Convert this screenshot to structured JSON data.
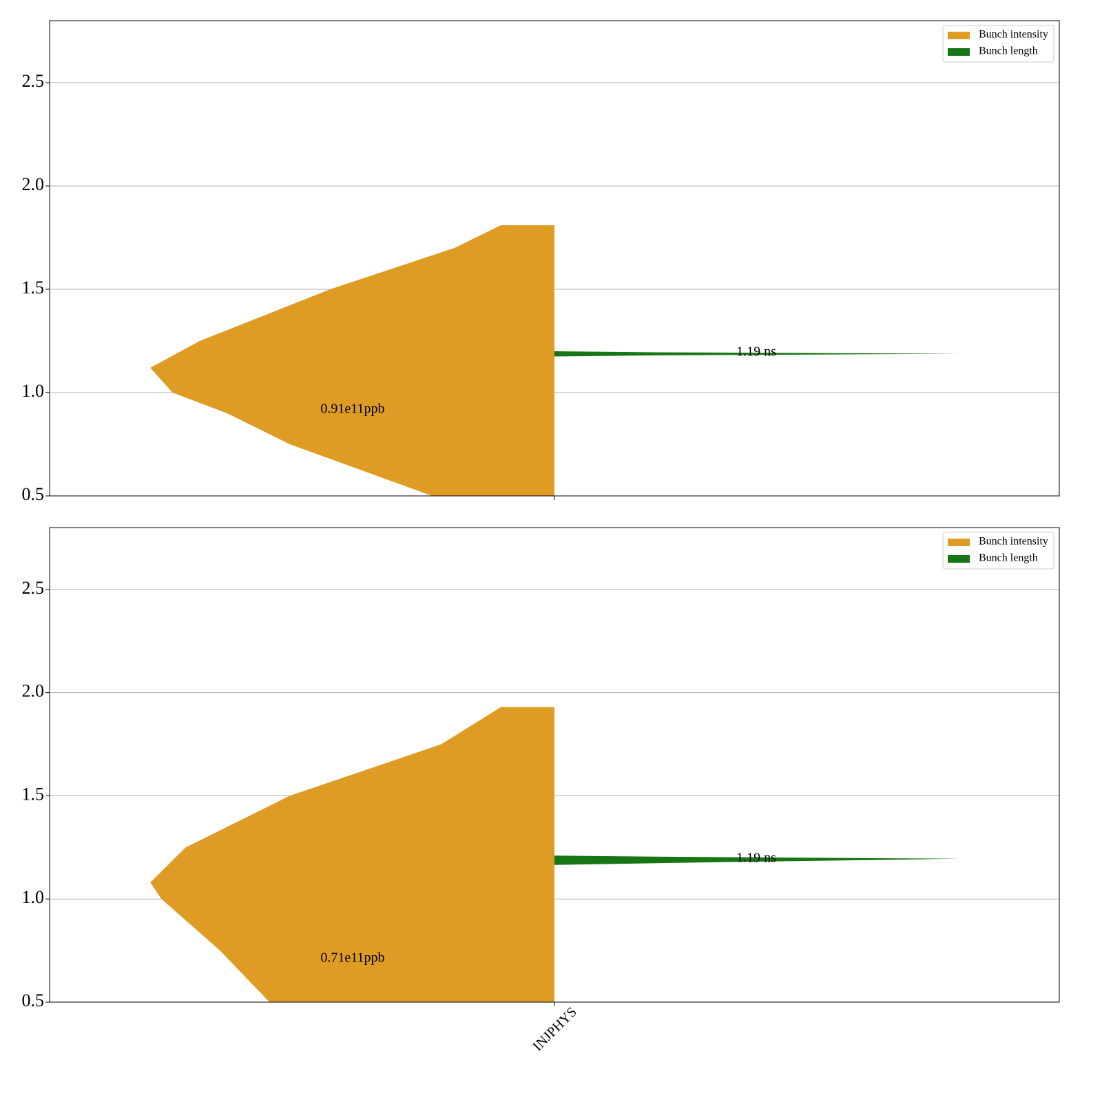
{
  "chart_data": [
    {
      "type": "violin",
      "categories": [
        null
      ],
      "ylim": [
        0.5,
        2.8
      ],
      "yticks": [
        0.5,
        {
          "value": 1,
          "label": "1.0"
        },
        1.5,
        {
          "value": 2,
          "label": "2.0"
        },
        2.5
      ],
      "grid": true,
      "legend": "upper right",
      "series": [
        {
          "name": "Bunch intensity",
          "color": "#df9c24",
          "side": "left",
          "y": [
            0.5,
            0.75,
            0.9,
            1.0,
            1.12,
            1.25,
            1.5,
            1.7,
            1.81
          ],
          "width": [
            0.121,
            0.262,
            0.324,
            0.378,
            0.4,
            0.351,
            0.222,
            0.099,
            0.053
          ]
        },
        {
          "name": "Bunch length",
          "color": "#177614",
          "side": "right",
          "y": [
            1.175,
            1.18,
            1.188,
            1.195,
            1.2
          ],
          "width": [
            0,
            0.1,
            0.4,
            0.1,
            0
          ]
        }
      ],
      "annotations": [
        "0.91e11ppb",
        "1.19 ns"
      ]
    },
    {
      "type": "violin",
      "categories": [
        "INJPHYS"
      ],
      "ylim": [
        0.5,
        2.8
      ],
      "yticks": [
        0.5,
        {
          "value": 1,
          "label": "1.0"
        },
        1.5,
        {
          "value": 2,
          "label": "2.0"
        },
        2.5
      ],
      "grid": true,
      "legend": "upper right",
      "series": [
        {
          "name": "Bunch intensity",
          "color": "#df9c24",
          "side": "left",
          "y": [
            0.5,
            0.75,
            1.0,
            1.08,
            1.25,
            1.5,
            1.75,
            1.93
          ],
          "width": [
            0.282,
            0.331,
            0.389,
            0.4,
            0.365,
            0.262,
            0.112,
            0.053
          ]
        },
        {
          "name": "Bunch length",
          "color": "#177614",
          "side": "right",
          "y": [
            1.165,
            1.175,
            1.195,
            1.205,
            1.21
          ],
          "width": [
            0,
            0.12,
            0.4,
            0.1,
            0
          ]
        }
      ],
      "annotations": [
        "0.71e11ppb",
        "1.19 ns"
      ]
    }
  ]
}
